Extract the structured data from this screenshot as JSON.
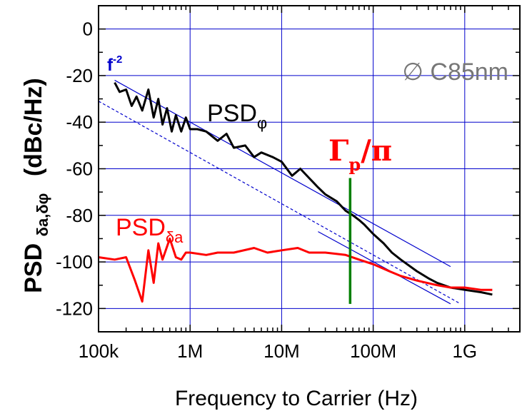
{
  "chart_data": {
    "type": "line",
    "title": "",
    "xlabel": "Frequency  to Carrier (Hz)",
    "ylabel_main": "PSD",
    "ylabel_sub": "δa,δφ",
    "ylabel_unit": "(dBc/Hz)",
    "xscale": "log",
    "xlim": [
      100000,
      4000000000
    ],
    "ylim": [
      -130,
      10
    ],
    "x_ticks": [
      {
        "value": 100000,
        "label": "100k"
      },
      {
        "value": 1000000,
        "label": "1M"
      },
      {
        "value": 10000000,
        "label": "10M"
      },
      {
        "value": 100000000,
        "label": "100M"
      },
      {
        "value": 1000000000,
        "label": "1G"
      }
    ],
    "y_ticks": [
      {
        "value": 0,
        "label": "0"
      },
      {
        "value": -20,
        "label": "-20"
      },
      {
        "value": -40,
        "label": "-40"
      },
      {
        "value": -60,
        "label": "-60"
      },
      {
        "value": -80,
        "label": "-80"
      },
      {
        "value": -100,
        "label": "-100"
      },
      {
        "value": -120,
        "label": "-120"
      }
    ],
    "grid": true,
    "series": [
      {
        "name": "PSD_φ",
        "color": "#000000",
        "x": [
          150000,
          170000,
          200000,
          230000,
          260000,
          300000,
          350000,
          400000,
          450000,
          500000,
          560000,
          630000,
          700000,
          800000,
          900000,
          1000000,
          1200000,
          1500000,
          2000000,
          2500000,
          3000000,
          4000000,
          5000000,
          6000000,
          8000000,
          10000000,
          13000000,
          16000000,
          20000000,
          25000000,
          30000000,
          40000000,
          50000000,
          60000000,
          70000000,
          80000000,
          100000000,
          130000000,
          160000000,
          200000000,
          300000000,
          400000000,
          500000000,
          700000000,
          1000000000,
          1500000000,
          2000000000
        ],
        "y": [
          -23,
          -27,
          -26,
          -33,
          -29,
          -35,
          -26,
          -38,
          -30,
          -41,
          -34,
          -44,
          -37,
          -44,
          -38,
          -43,
          -43,
          -44,
          -48,
          -45,
          -51,
          -50,
          -55,
          -53,
          -55,
          -57,
          -63,
          -60,
          -64,
          -68,
          -71,
          -74,
          -78,
          -80,
          -82,
          -84,
          -88,
          -92,
          -96,
          -99,
          -104,
          -107,
          -109,
          -111,
          -112,
          -113,
          -114
        ]
      },
      {
        "name": "PSD_δa",
        "color": "#ff0000",
        "x": [
          100000,
          150000,
          200000,
          250000,
          300000,
          350000,
          400000,
          450000,
          500000,
          600000,
          700000,
          800000,
          900000,
          1000000,
          1500000,
          2000000,
          3000000,
          5000000,
          7000000,
          10000000,
          15000000,
          20000000,
          30000000,
          50000000,
          70000000,
          100000000,
          150000000,
          200000000,
          300000000,
          500000000,
          700000000,
          1000000000,
          1500000000,
          2000000000
        ],
        "y": [
          -98,
          -99,
          -98,
          -108,
          -117,
          -95,
          -109,
          -92,
          -99,
          -90,
          -98,
          -99,
          -96,
          -96,
          -97,
          -96,
          -96,
          -94,
          -96,
          -95,
          -94,
          -96,
          -96,
          -97,
          -99,
          -101,
          -104,
          -106,
          -108,
          -110,
          -111,
          -111,
          -112,
          -112
        ]
      }
    ],
    "fit_lines": [
      {
        "label": "f⁻²",
        "style": "solid",
        "color": "#0000cc",
        "x": [
          150000,
          700000000
        ],
        "y": [
          -22,
          -102
        ]
      },
      {
        "label": "",
        "style": "dashed",
        "color": "#0000cc",
        "x": [
          100000,
          900000000
        ],
        "y": [
          -31,
          -118
        ]
      },
      {
        "label": "",
        "style": "solid",
        "color": "#0000cc",
        "x": [
          25000000,
          700000000
        ],
        "y": [
          -87,
          -118
        ]
      }
    ],
    "marker": {
      "label_main": "Γ",
      "label_sub": "p",
      "label_tail": "/π",
      "x": 56000000,
      "y_range": [
        -118,
        -64
      ],
      "color": "#008000"
    },
    "annotations": {
      "slope": "f",
      "slope_exp": "-2",
      "sample": "∅ C85nm",
      "psd_phi_main": "PSD",
      "psd_phi_sub": "φ",
      "psd_amp_main": "PSD",
      "psd_amp_sub": "δa"
    }
  }
}
